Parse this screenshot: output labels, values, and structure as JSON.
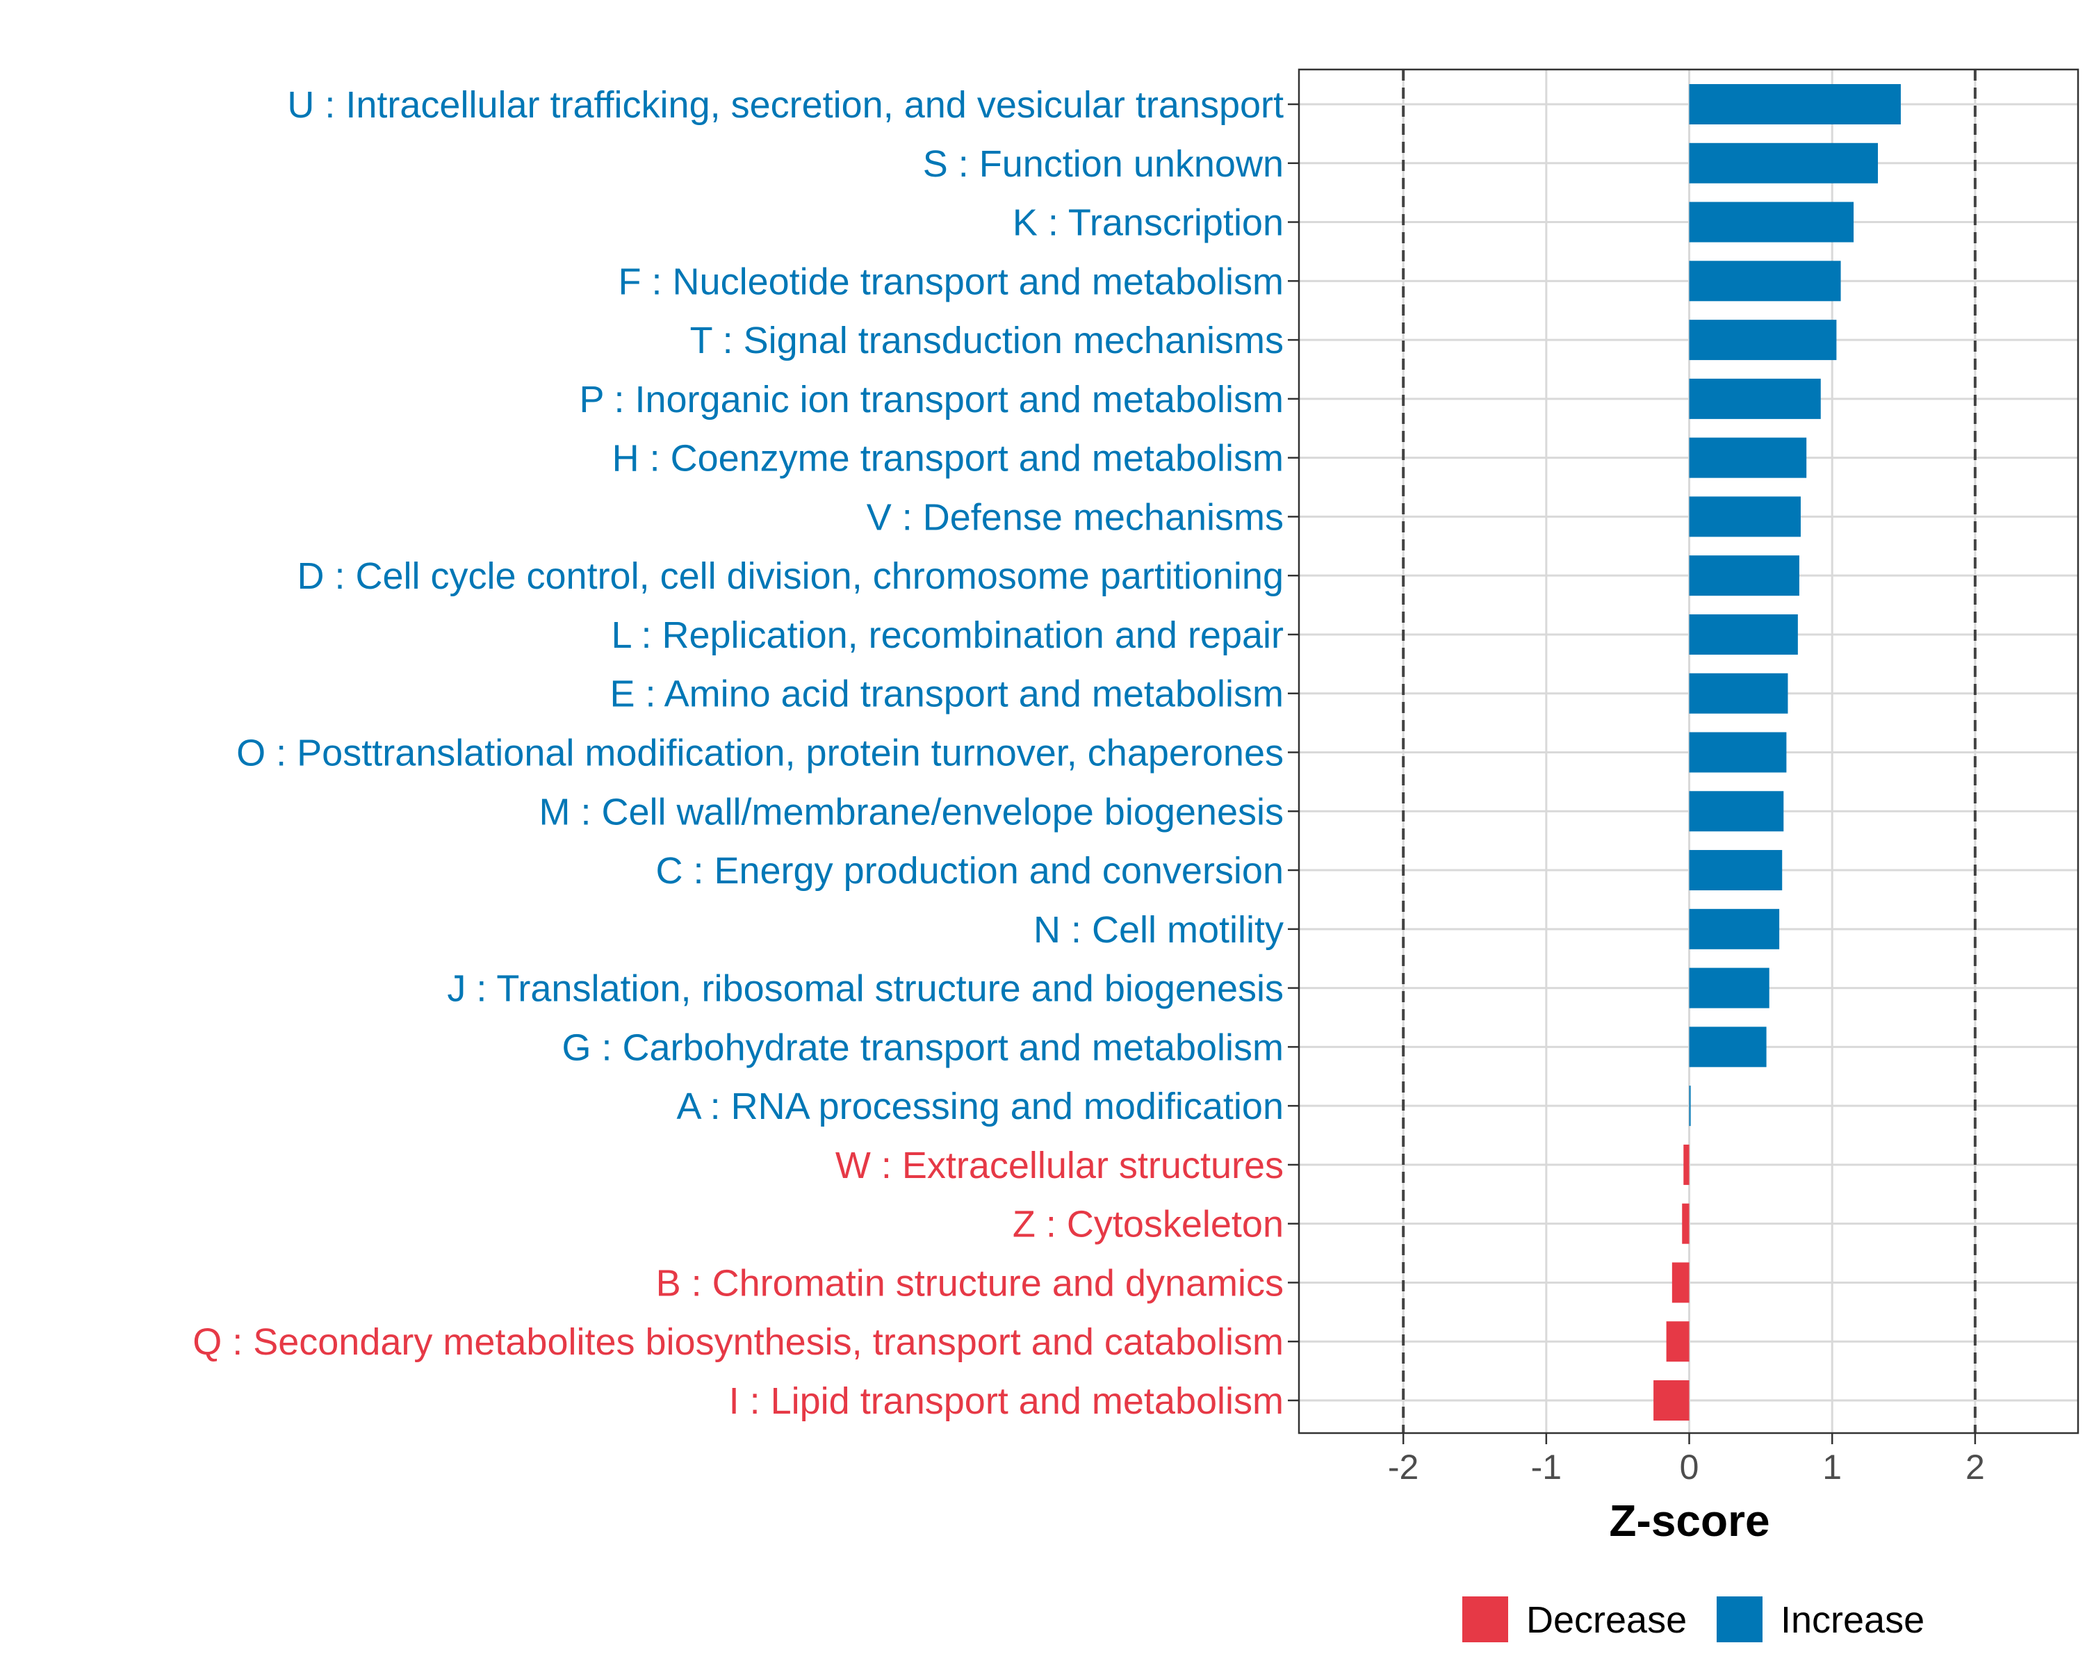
{
  "chart_data": {
    "type": "bar",
    "orientation": "horizontal",
    "title": "",
    "xlabel": "Z-score",
    "ylabel": "",
    "xlim": [
      -2.73,
      2.72
    ],
    "xticks": [
      -2,
      -1,
      0,
      1,
      2
    ],
    "xtick_labels": [
      "-2",
      "-1",
      "0",
      "1",
      "2"
    ],
    "reference_lines": [
      -2,
      2
    ],
    "grid": true,
    "categories": [
      "U : Intracellular trafficking, secretion, and vesicular transport",
      "S : Function unknown",
      "K : Transcription",
      "F : Nucleotide transport and metabolism",
      "T : Signal transduction mechanisms",
      "P : Inorganic ion transport and metabolism",
      "H : Coenzyme transport and metabolism",
      "V : Defense mechanisms",
      "D : Cell cycle control, cell division, chromosome partitioning",
      "L : Replication, recombination and repair",
      "E : Amino acid transport and metabolism",
      "O : Posttranslational modification, protein turnover, chaperones",
      "M : Cell wall/membrane/envelope biogenesis",
      "C : Energy production and conversion",
      "N : Cell motility",
      "J : Translation, ribosomal structure and biogenesis",
      "G : Carbohydrate transport and metabolism",
      "A : RNA processing and modification",
      "W : Extracellular structures",
      "Z : Cytoskeleton",
      "B : Chromatin structure and dynamics",
      "Q : Secondary metabolites biosynthesis, transport and catabolism",
      "I : Lipid transport and metabolism"
    ],
    "values": [
      1.48,
      1.32,
      1.15,
      1.06,
      1.03,
      0.92,
      0.82,
      0.78,
      0.77,
      0.76,
      0.69,
      0.68,
      0.66,
      0.65,
      0.63,
      0.56,
      0.54,
      0.01,
      -0.04,
      -0.05,
      -0.12,
      -0.16,
      -0.25
    ],
    "legend": {
      "placement": "bottom",
      "entries": [
        {
          "label": "Decrease",
          "color": "#E63946"
        },
        {
          "label": "Increase",
          "color": "#0077B6"
        }
      ]
    }
  }
}
